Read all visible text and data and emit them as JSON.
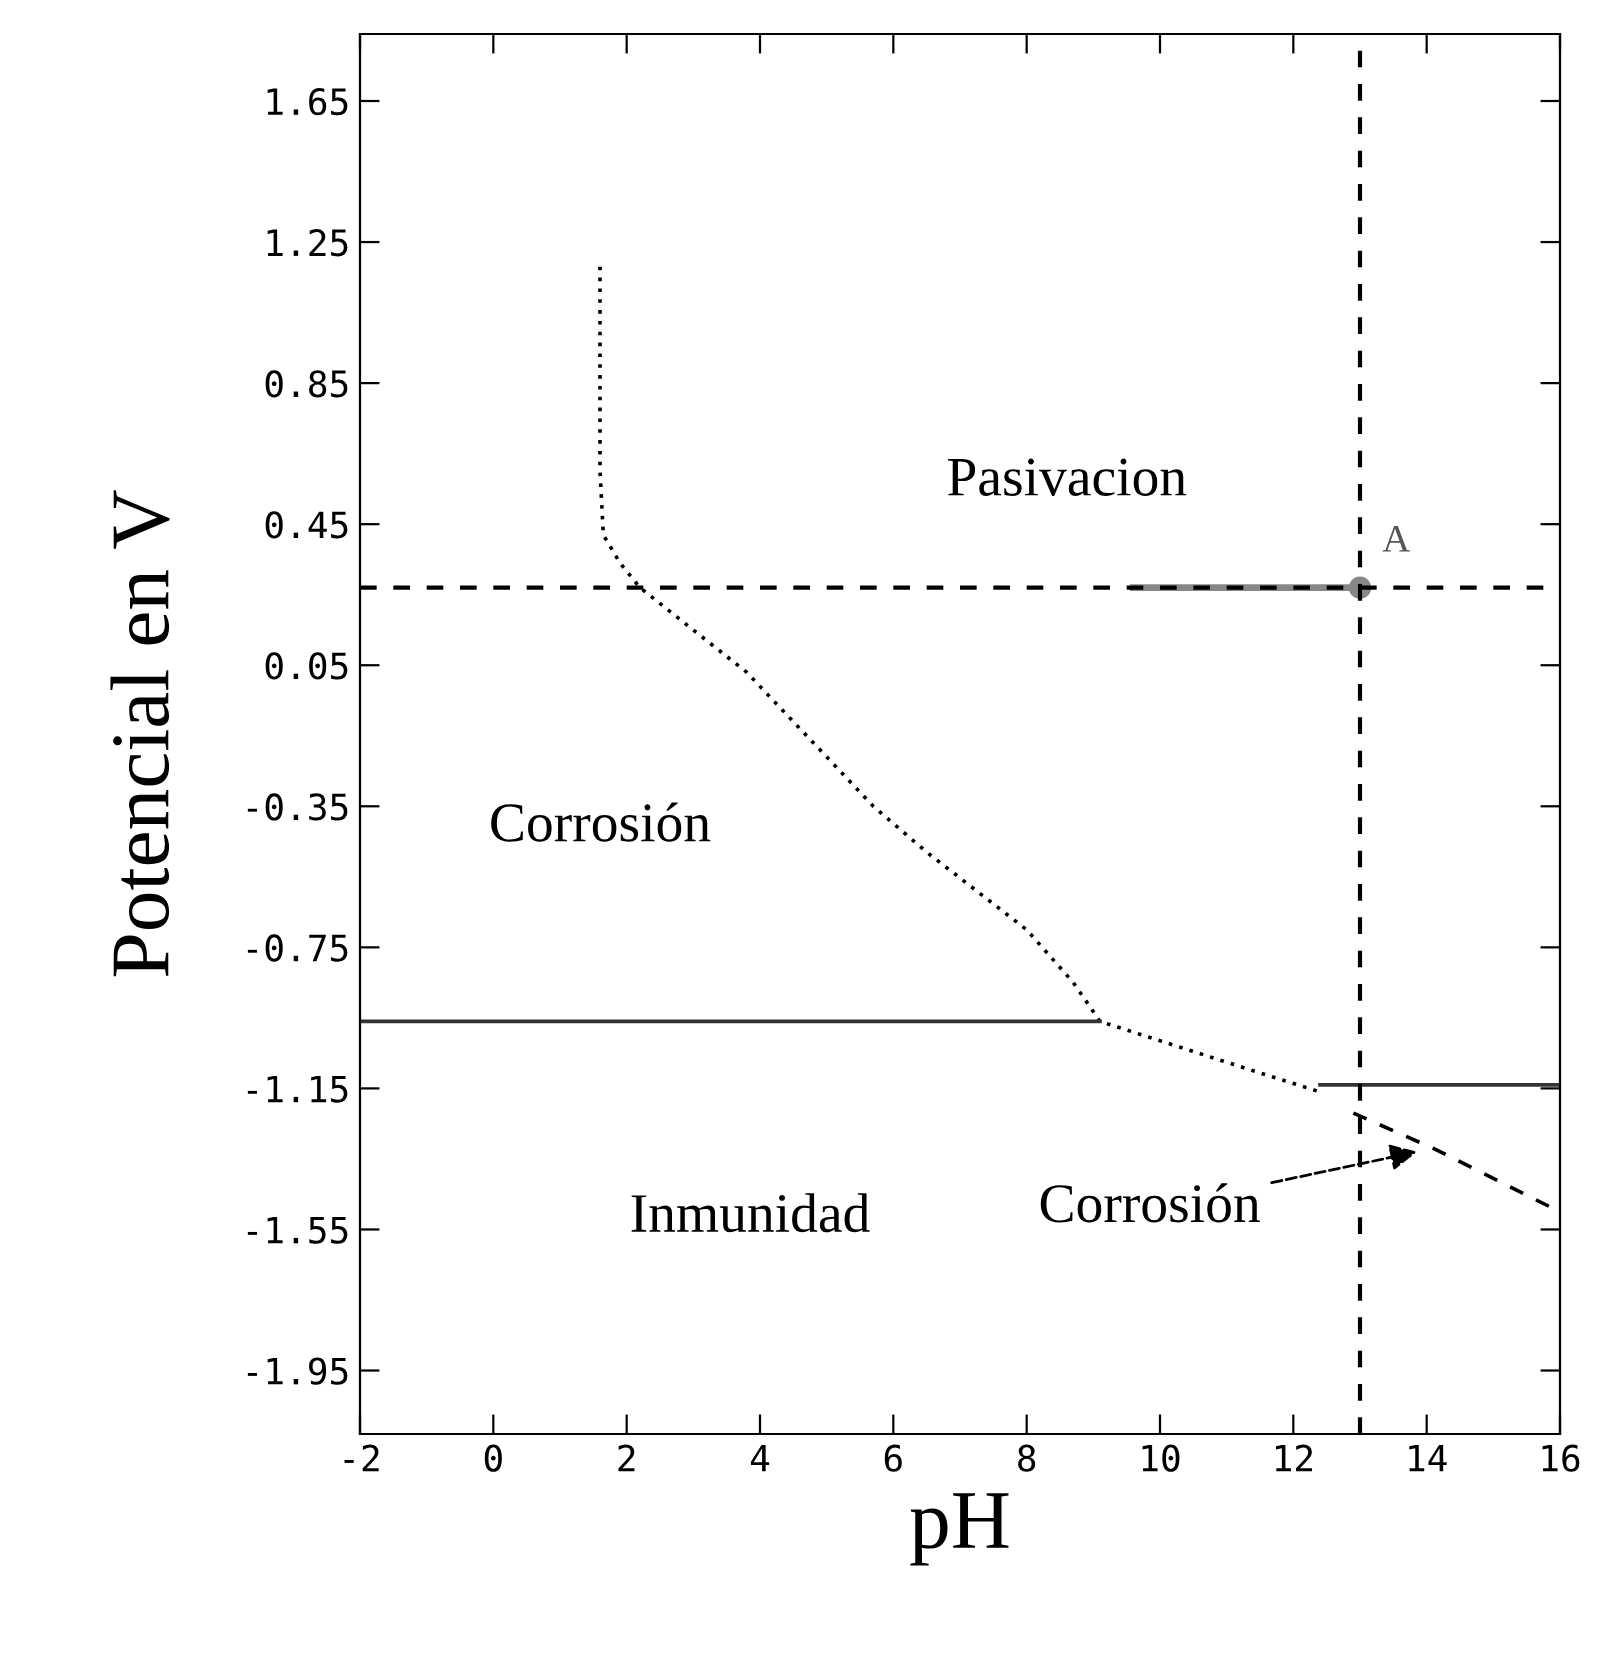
{
  "chart_data": {
    "type": "line",
    "xlabel": "pH",
    "ylabel": "Potencial en V",
    "xlim": [
      -2,
      16
    ],
    "xticks": [
      -2,
      0,
      2,
      4,
      6,
      8,
      10,
      12,
      14,
      16
    ],
    "ylim": [
      -2.13,
      1.84
    ],
    "yticks": [
      1.65,
      1.25,
      0.85,
      0.45,
      0.05,
      -0.35,
      -0.75,
      -1.15,
      -1.55,
      -1.95
    ],
    "grid": false,
    "legend": false,
    "series": [
      {
        "color": "#000000",
        "line_style": "dotted",
        "x": [
          1.6,
          1.6,
          1.65,
          1.9,
          2.2,
          3.8,
          5.7,
          6.5,
          8.0,
          8.7,
          9.1,
          11.4,
          12.4
        ],
        "values": [
          1.18,
          0.6,
          0.42,
          0.34,
          0.27,
          0.03,
          -0.35,
          -0.48,
          -0.7,
          -0.85,
          -0.96,
          -1.1,
          -1.16
        ]
      },
      {
        "color": "#333333",
        "line_style": "solid",
        "x": [
          -2,
          9.1
        ],
        "values": [
          -0.96,
          -0.96
        ]
      },
      {
        "color": "#333333",
        "line_style": "solid",
        "x": [
          12.4,
          16
        ],
        "values": [
          -1.14,
          -1.14
        ]
      },
      {
        "color": "#000000",
        "line_style": "dashed",
        "x": [
          12.9,
          14.1,
          16
        ],
        "values": [
          -1.22,
          -1.32,
          -1.5
        ]
      },
      {
        "name": "A",
        "color": "#888888",
        "line_style": "solid",
        "marker": "circle",
        "x": [
          13,
          9.6
        ],
        "values": [
          0.27,
          0.27
        ]
      }
    ],
    "ref_lines": [
      {
        "axis": "y",
        "value": 0.27,
        "color": "#000000",
        "line_style": "dashed"
      },
      {
        "axis": "x",
        "value": 13,
        "color": "#000000",
        "line_style": "dashed"
      }
    ],
    "annotations": [
      "Pasivacion",
      "Corrosión",
      "Inmunidad",
      "Corrosión"
    ]
  }
}
